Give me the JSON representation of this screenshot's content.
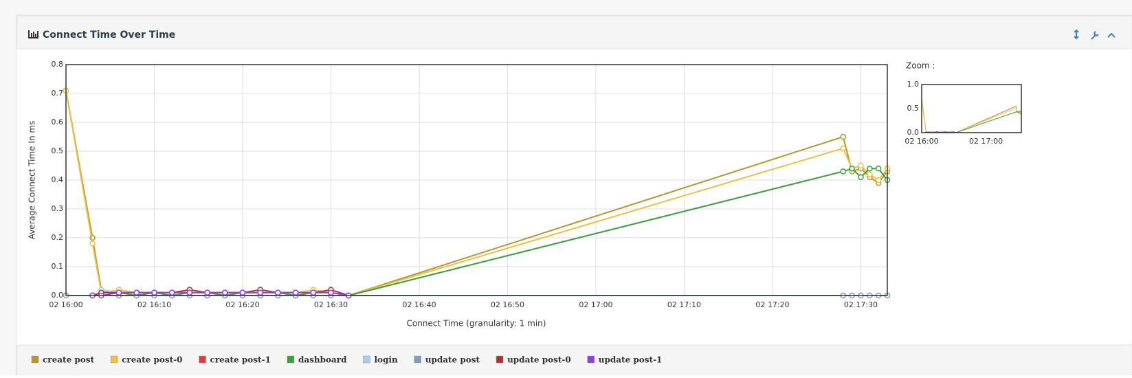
{
  "chart_data": {
    "type": "line",
    "title": "Connect Time Over Time",
    "x_label": "Connect Time (granularity: 1 min)",
    "y_label": "Average Connect Time In ms",
    "x": [
      "02 16:00",
      "02 16:03",
      "02 16:04",
      "02 16:06",
      "02 16:08",
      "02 16:10",
      "02 16:12",
      "02 16:14",
      "02 16:16",
      "02 16:18",
      "02 16:20",
      "02 16:22",
      "02 16:24",
      "02 16:26",
      "02 16:28",
      "02 16:30",
      "02 16:32",
      "02 17:28",
      "02 17:29",
      "02 17:30",
      "02 17:31",
      "02 17:32",
      "02 17:33"
    ],
    "xlim": [
      "02 16:00",
      "02 17:33"
    ],
    "xticks": [
      "02 16:00",
      "02 16:10",
      "02 16:20",
      "02 16:30",
      "02 16:40",
      "02 16:50",
      "02 17:00",
      "02 17:10",
      "02 17:20",
      "02 17:30"
    ],
    "ylim": [
      0,
      0.8
    ],
    "yticks": [
      {
        "value": 0,
        "label": "0.0"
      },
      0.1,
      0.2,
      0.3,
      0.4,
      0.5,
      0.6,
      0.7,
      0.8
    ],
    "grid": true,
    "series": [
      {
        "name": "create post",
        "color": "#b8962e",
        "values": [
          0.71,
          0.2,
          0.02,
          0.01,
          0.01,
          0.01,
          0.01,
          0.01,
          0.01,
          0.01,
          0.01,
          0.01,
          0.01,
          0.01,
          0.01,
          0.01,
          0,
          0.55,
          0.43,
          0.44,
          0.41,
          0.39,
          0.43
        ]
      },
      {
        "name": "create post-0",
        "color": "#ecc043",
        "values": [
          0.71,
          0.18,
          0.01,
          0.02,
          0.01,
          0.01,
          0.01,
          0.02,
          0.01,
          0.01,
          0.01,
          0.01,
          0.01,
          0.01,
          0.02,
          0.01,
          0,
          0.51,
          0.44,
          0.45,
          0.42,
          0.4,
          0.44
        ]
      },
      {
        "name": "create post-1",
        "color": "#d9413f",
        "values": [
          null,
          0,
          0,
          0,
          0,
          0,
          0,
          0,
          0,
          0,
          0,
          0,
          0,
          0,
          0,
          0,
          0,
          null,
          null,
          null,
          null,
          null,
          null
        ]
      },
      {
        "name": "dashboard",
        "color": "#3c9e3c",
        "values": [
          null,
          0,
          0.01,
          0.01,
          0,
          0.01,
          0,
          0.01,
          0.01,
          0,
          0.01,
          0.01,
          0.01,
          0,
          0.01,
          0.01,
          0,
          0.43,
          0.44,
          0.41,
          0.44,
          0.44,
          0.4
        ]
      },
      {
        "name": "login",
        "color": "#a8cdee",
        "values": [
          0,
          null,
          0.02,
          0.01,
          0.01,
          0.01,
          0.01,
          0.01,
          0.01,
          0.01,
          0.01,
          0.01,
          0.01,
          0.01,
          0.01,
          0.01,
          0,
          0,
          0,
          0,
          0,
          0,
          0
        ]
      },
      {
        "name": "update post",
        "color": "#7f9dbd",
        "values": [
          0,
          0,
          0,
          0,
          0,
          0,
          0,
          0,
          0,
          0,
          0,
          0,
          0,
          0,
          0,
          0,
          0,
          0,
          0,
          0,
          0,
          0,
          0
        ]
      },
      {
        "name": "update post-0",
        "color": "#a83232",
        "values": [
          null,
          0,
          0.01,
          0.01,
          0.01,
          0.01,
          0.01,
          0.02,
          0.01,
          0.01,
          0.01,
          0.02,
          0.01,
          0.01,
          0.01,
          0.02,
          0,
          null,
          null,
          null,
          null,
          null,
          null
        ]
      },
      {
        "name": "update post-1",
        "color": "#8e3fe8",
        "values": [
          null,
          0,
          0,
          0.01,
          0.01,
          0.01,
          0.01,
          0.01,
          0.01,
          0.01,
          0.01,
          0.01,
          0.01,
          0.01,
          0.01,
          0.01,
          0,
          null,
          null,
          null,
          null,
          null,
          null
        ]
      }
    ],
    "zoom": {
      "title": "Zoom :",
      "ylim": [
        0,
        1
      ],
      "yticks": [
        {
          "value": 0,
          "label": "0.0"
        },
        0.5,
        {
          "value": 1,
          "label": "1.0"
        }
      ],
      "xticks": [
        "02 16:00",
        "02 17:00"
      ]
    }
  }
}
